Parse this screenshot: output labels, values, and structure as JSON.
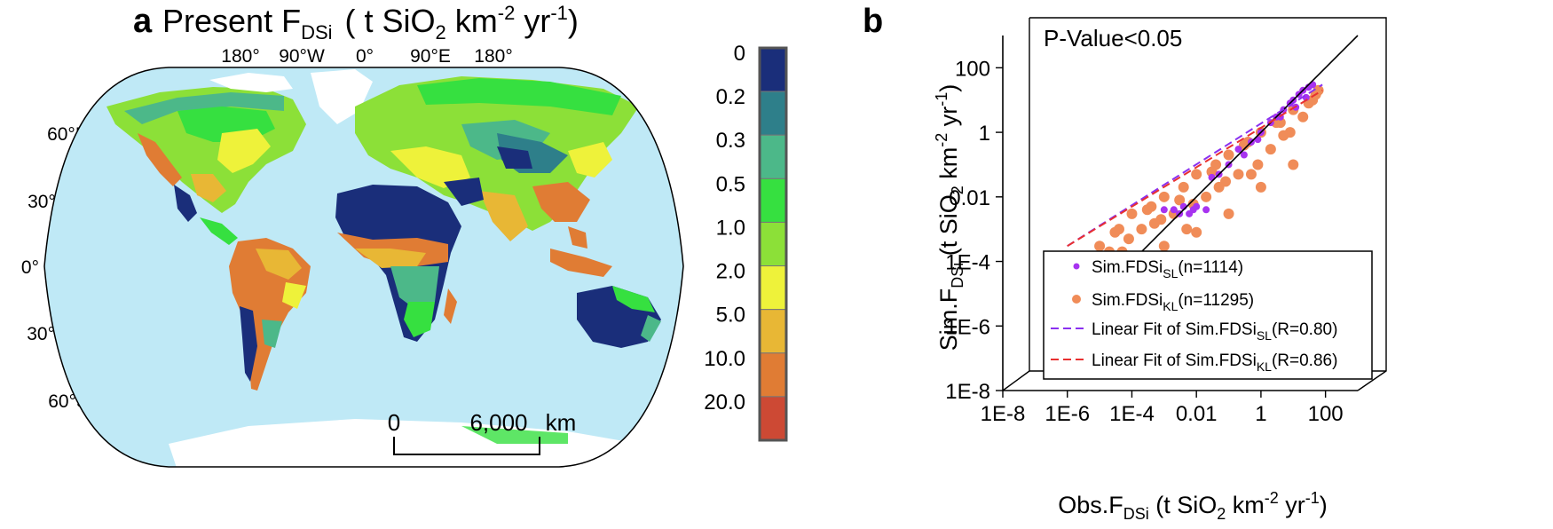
{
  "panel_a": {
    "letter": "a",
    "title_main": "Present F",
    "title_sub": "DSi",
    "title_units_pre": "( t SiO",
    "title_units_sub": "2",
    "title_units_mid": " km",
    "title_units_sup1": "-2",
    "title_units_mid2": " yr",
    "title_units_sup2": "-1",
    "title_units_end": ")",
    "lon_labels": [
      "180°",
      "90°W",
      "0°",
      "90°E",
      "180°"
    ],
    "lat_labels": [
      "60°N",
      "30°N",
      "0°",
      "30°S",
      "60°S"
    ],
    "scalebar": {
      "start": "0",
      "end": "6,000",
      "unit": "km"
    },
    "ocean_color": "#bfe9f6",
    "land_colors": {
      "desert": "#1a2e7a",
      "very_low": "#2e7f8a",
      "low": "#4cb889",
      "mid": "#36e040",
      "mid2": "#8ce038",
      "mid3": "#eef23a",
      "high": "#e8b735",
      "high2": "#e07c34",
      "highest": "#cd4934",
      "ice": "#ffffff"
    }
  },
  "colorbar": {
    "labels": [
      "0",
      "0.2",
      "0.3",
      "0.5",
      "1.0",
      "2.0",
      "5.0",
      "10.0",
      "20.0"
    ],
    "colors": [
      "#1a2e7a",
      "#2e7f8a",
      "#4cb889",
      "#36e040",
      "#8ce038",
      "#eef23a",
      "#e8b735",
      "#e07c34",
      "#cd4934"
    ]
  },
  "panel_b": {
    "letter": "b",
    "pvalue": "P-Value<0.05",
    "xlabel_pre": "Obs.F",
    "xlabel_sub": "DSi",
    "xlabel_units_pre": " (t SiO",
    "xlabel_units_sub": "2",
    "xlabel_units_mid": " km",
    "xlabel_units_sup1": "-2",
    "xlabel_units_mid2": " yr",
    "xlabel_units_sup2": "-1",
    "xlabel_units_end": ")",
    "ylabel_pre": "Sim.F",
    "ylabel_sub": "DSi",
    "ylabel_units_pre": " (t SiO",
    "ylabel_units_sub": "2",
    "ylabel_units_mid": " km",
    "ylabel_units_sup1": "-2",
    "ylabel_units_mid2": " yr",
    "ylabel_units_sup2": "-1",
    "ylabel_units_end": ")",
    "legend": [
      {
        "pre": "Sim.FDSi",
        "sub": "SL",
        "post": "(n=1114)",
        "color": "#a733f0",
        "kind": "dot"
      },
      {
        "pre": "Sim.FDSi",
        "sub": "KL",
        "post": "(n=11295)",
        "color": "#f08c58",
        "kind": "dot"
      },
      {
        "pre": "Linear Fit of Sim.FDSi",
        "sub": "SL",
        "post": "(R=0.80)",
        "color": "#8a30f0",
        "kind": "dash"
      },
      {
        "pre": "Linear Fit of Sim.FDSi",
        "sub": "KL",
        "post": "(R=0.86)",
        "color": "#e83030",
        "kind": "dash"
      }
    ]
  },
  "chart_data": {
    "type": "scatter",
    "x_scale": "log",
    "y_scale": "log",
    "xlim": [
      1e-08,
      1000
    ],
    "ylim": [
      1e-08,
      1000
    ],
    "x_ticks": [
      "1E-8",
      "1E-6",
      "1E-4",
      "0.01",
      "1",
      "100"
    ],
    "y_ticks": [
      "1E-8",
      "1E-6",
      "1E-4",
      "0.01",
      "1",
      "100"
    ],
    "x_tick_values": [
      1e-08,
      1e-06,
      0.0001,
      0.01,
      1,
      100
    ],
    "y_tick_values": [
      1e-08,
      1e-06,
      0.0001,
      0.01,
      1,
      100
    ],
    "one_to_one_line": true,
    "series": [
      {
        "name": "Sim.FDSiKL(n=11295)",
        "color": "#f08c58",
        "x": [
          1e-05,
          2e-05,
          4e-05,
          8e-05,
          0.0001,
          0.0002,
          0.0004,
          0.0008,
          0.001,
          0.002,
          0.004,
          0.008,
          0.01,
          0.02,
          0.04,
          0.08,
          0.1,
          0.2,
          0.4,
          0.8,
          1,
          2,
          4,
          8,
          10,
          20,
          40,
          60,
          3e-05,
          0.0003,
          0.003,
          0.03,
          0.3,
          3,
          30,
          5e-05,
          0.0005,
          0.005,
          0.05,
          0.5,
          5,
          50,
          0.0001,
          0.001,
          0.01,
          0.1,
          1,
          10
        ],
        "y": [
          0.0003,
          0.0002,
          0.001,
          0.0005,
          0.003,
          0.001,
          0.005,
          0.002,
          0.01,
          0.003,
          0.02,
          0.006,
          0.05,
          0.01,
          0.1,
          0.03,
          0.2,
          0.05,
          0.5,
          0.1,
          1,
          0.3,
          2,
          1,
          5,
          3,
          10,
          20,
          0.0008,
          0.004,
          0.008,
          0.06,
          0.4,
          2,
          8,
          0.0002,
          0.0015,
          0.001,
          0.02,
          0.05,
          0.8,
          15,
          5e-05,
          0.0003,
          0.0008,
          0.003,
          0.02,
          0.1
        ]
      },
      {
        "name": "Sim.FDSiSL(n=1114)",
        "color": "#a733f0",
        "x": [
          0.001,
          0.002,
          0.004,
          0.008,
          0.01,
          0.02,
          0.05,
          0.1,
          0.2,
          0.5,
          1,
          2,
          3,
          5,
          8,
          10,
          15,
          20,
          30,
          40,
          0.003,
          0.006,
          0.03,
          0.3,
          0.8,
          4,
          12,
          25
        ],
        "y": [
          0.004,
          0.004,
          0.005,
          0.004,
          0.005,
          0.004,
          0.05,
          0.1,
          0.3,
          0.5,
          1,
          2,
          3,
          5,
          8,
          10,
          15,
          20,
          25,
          30,
          0.003,
          0.003,
          0.04,
          0.2,
          0.6,
          3,
          6,
          12
        ]
      },
      {
        "name": "Linear Fit of Sim.FDSiSL(R=0.80)",
        "color": "#8a30f0",
        "x": [
          1e-06,
          80
        ],
        "y": [
          0.0003,
          30
        ]
      },
      {
        "name": "Linear Fit of Sim.FDSiKL(R=0.86)",
        "color": "#e83030",
        "x": [
          1e-06,
          80
        ],
        "y": [
          0.0003,
          20
        ]
      }
    ]
  }
}
